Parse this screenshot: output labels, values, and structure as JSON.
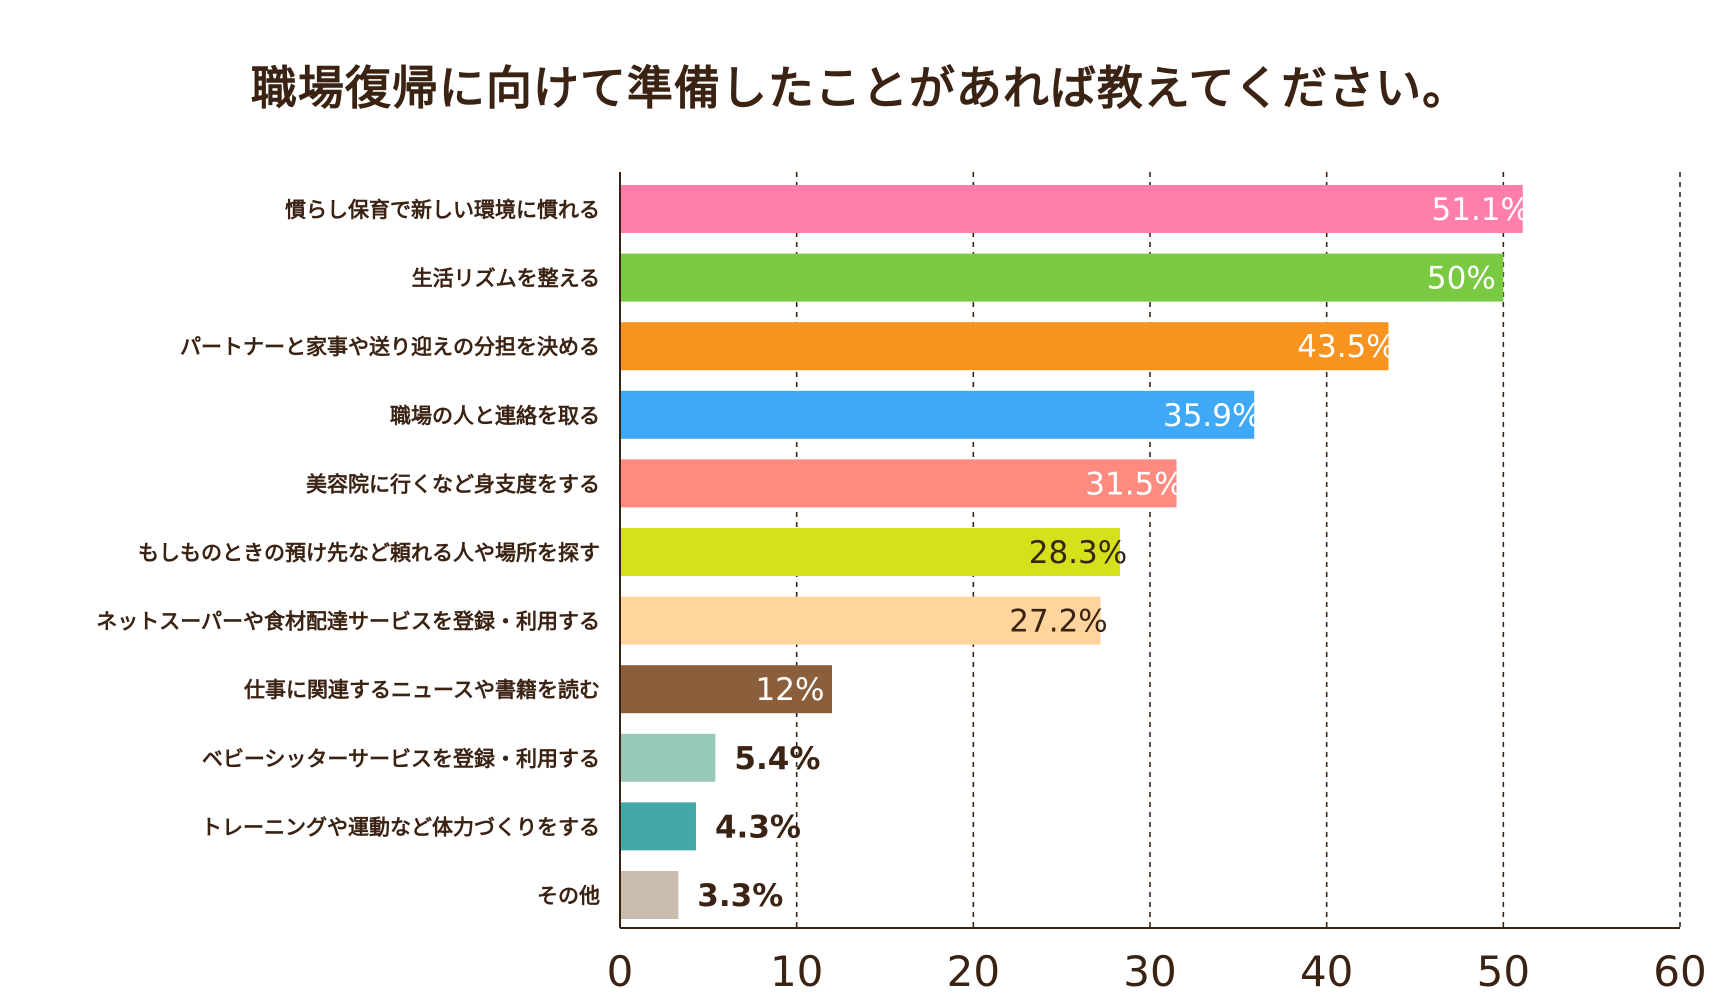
{
  "chart_data": {
    "type": "bar",
    "orientation": "horizontal",
    "title": "職場復帰に向けて準備したことがあれば教えてください。",
    "categories": [
      "慣らし保育で新しい環境に慣れる",
      "生活リズムを整える",
      "パートナーと家事や送り迎えの分担を決める",
      "職場の人と連絡を取る",
      "美容院に行くなど身支度をする",
      "もしものときの預け先など頼れる人や場所を探す",
      "ネットスーパーや食材配達サービスを登録・利用する",
      "仕事に関連するニュースや書籍を読む",
      "ベビーシッターサービスを登録・利用する",
      "トレーニングや運動など体力づくりをする",
      "その他"
    ],
    "values": [
      51.1,
      50,
      43.5,
      35.9,
      31.5,
      28.3,
      27.2,
      12,
      5.4,
      4.3,
      3.3
    ],
    "value_labels": [
      "51.1%",
      "50%",
      "43.5%",
      "35.9%",
      "31.5%",
      "28.3%",
      "27.2%",
      "12%",
      "5.4%",
      "4.3%",
      "3.3%"
    ],
    "colors": [
      "#ff7eaa",
      "#7ac943",
      "#f7931e",
      "#3fa9f5",
      "#ff8a7f",
      "#d4e21c",
      "#ffd59d",
      "#8b5e3c",
      "#98c8b6",
      "#45a8a8",
      "#c9bbae"
    ],
    "label_colors": [
      "#ffffff",
      "#ffffff",
      "#ffffff",
      "#ffffff",
      "#ffffff",
      "#3b2314",
      "#3b2314",
      "#ffffff",
      "#3b2314",
      "#3b2314",
      "#3b2314"
    ],
    "label_inside": [
      true,
      true,
      true,
      true,
      true,
      true,
      true,
      true,
      false,
      false,
      false
    ],
    "xlim": [
      0,
      60
    ],
    "xticks": [
      0,
      10,
      20,
      30,
      40,
      50,
      60
    ],
    "grid": "vertical dashed",
    "text_color": "#3b2314"
  }
}
